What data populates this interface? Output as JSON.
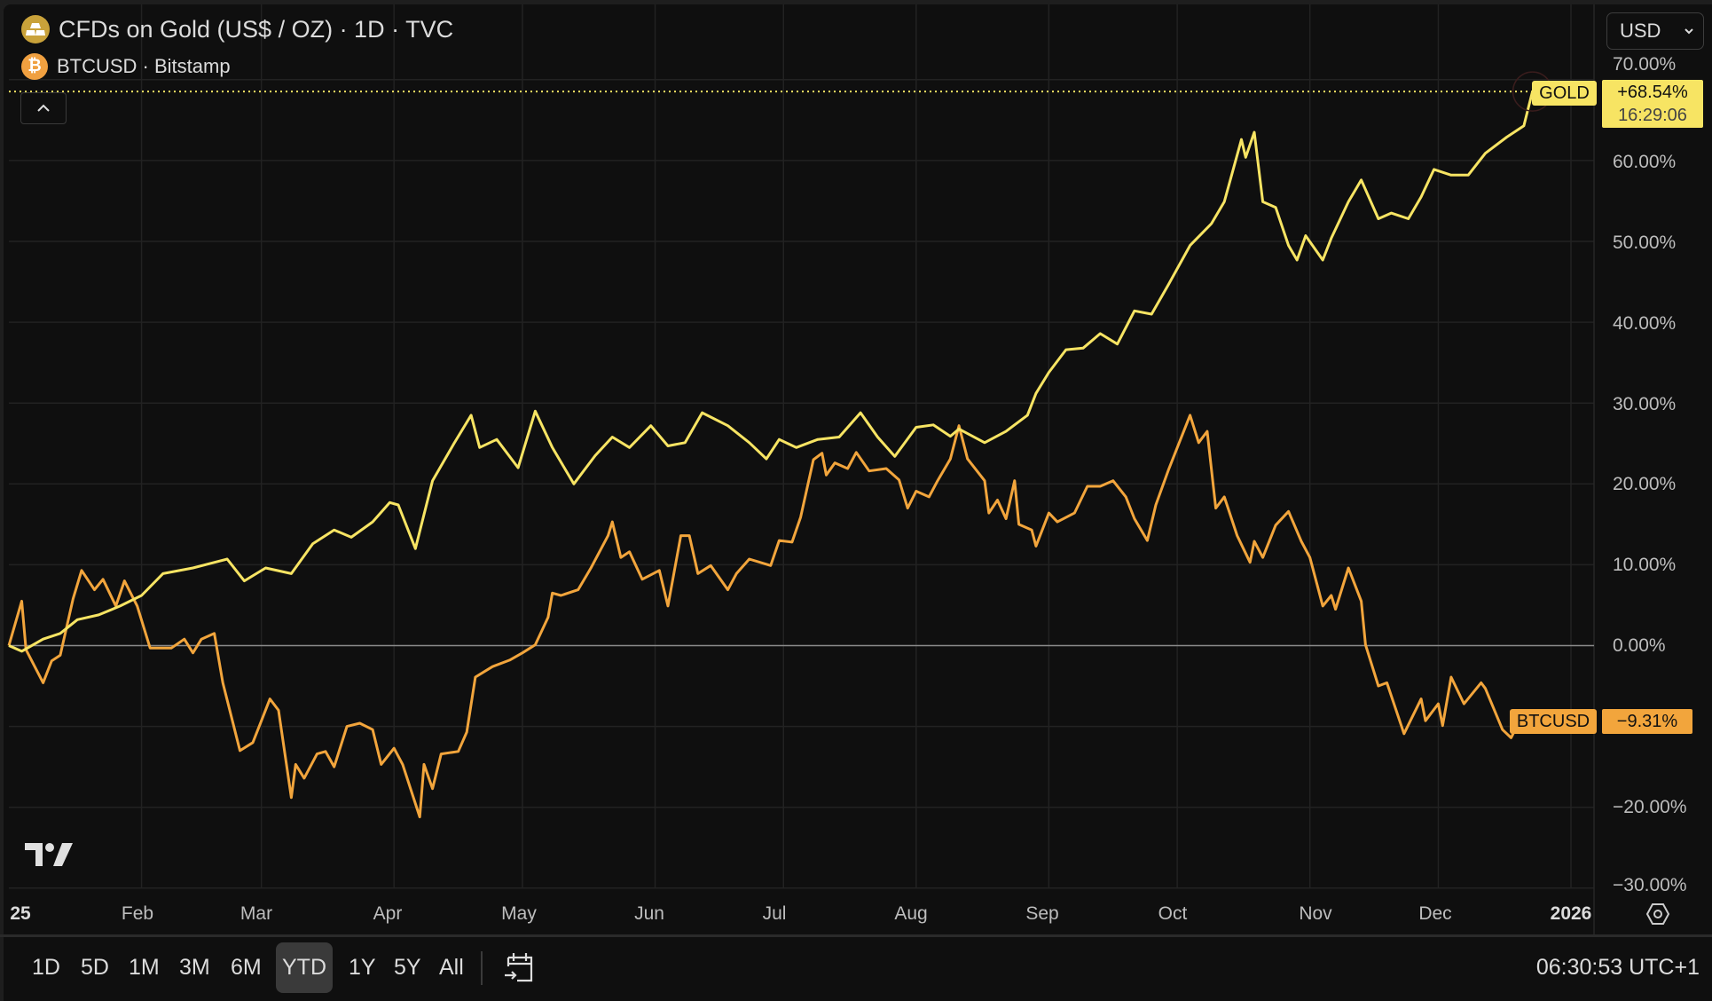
{
  "legend": {
    "gold": {
      "title": "CFDs on Gold (US$ / OZ) · 1D · TVC",
      "icon": "gold-bars-icon",
      "icon_color": "#c9a23a"
    },
    "btc": {
      "title": "BTCUSD · Bitstamp",
      "icon": "bitcoin-icon",
      "icon_glyph": "₿",
      "icon_color": "#f0a040"
    }
  },
  "currency_select": {
    "value": "USD"
  },
  "y_axis": {
    "labels": [
      "70.00%",
      "60.00%",
      "50.00%",
      "40.00%",
      "30.00%",
      "20.00%",
      "10.00%",
      "0.00%",
      "−20.00%",
      "−30.00%"
    ]
  },
  "x_axis": {
    "labels": [
      "25",
      "Feb",
      "Mar",
      "Apr",
      "May",
      "Jun",
      "Jul",
      "Aug",
      "Sep",
      "Oct",
      "Nov",
      "Dec",
      "2026"
    ]
  },
  "price_tags": {
    "gold": {
      "name": "GOLD",
      "value": "+68.54%",
      "countdown": "16:29:06"
    },
    "btc": {
      "name": "BTCUSD",
      "value": "−9.31%"
    }
  },
  "toolbar": {
    "ranges": [
      "1D",
      "5D",
      "1M",
      "3M",
      "6M",
      "YTD",
      "1Y",
      "5Y",
      "All"
    ],
    "active_range": "YTD",
    "clock": "06:30:53 UTC+1"
  },
  "chart_data": {
    "type": "line",
    "ylabel_unit": "%",
    "ylim": [
      -30,
      70
    ],
    "xlim": [
      "2025-01-01",
      "2026-01-08"
    ],
    "grid": true,
    "series": [
      {
        "name": "GOLD",
        "color": "#f7e463",
        "points": [
          [
            "2025-01-01",
            0
          ],
          [
            "2025-01-04",
            -0.7
          ],
          [
            "2025-01-09",
            0.8
          ],
          [
            "2025-01-13",
            1.5
          ],
          [
            "2025-01-17",
            3.2
          ],
          [
            "2025-01-22",
            3.8
          ],
          [
            "2025-01-27",
            4.9
          ],
          [
            "2025-02-01",
            6.2
          ],
          [
            "2025-02-06",
            8.9
          ],
          [
            "2025-02-13",
            9.6
          ],
          [
            "2025-02-21",
            10.7
          ],
          [
            "2025-02-25",
            8.0
          ],
          [
            "2025-03-02",
            9.6
          ],
          [
            "2025-03-08",
            8.9
          ],
          [
            "2025-03-13",
            12.6
          ],
          [
            "2025-03-18",
            14.3
          ],
          [
            "2025-03-22",
            13.4
          ],
          [
            "2025-03-27",
            15.3
          ],
          [
            "2025-03-31",
            17.7
          ],
          [
            "2025-04-02",
            17.4
          ],
          [
            "2025-04-06",
            12.0
          ],
          [
            "2025-04-10",
            20.4
          ],
          [
            "2025-04-15",
            25.0
          ],
          [
            "2025-04-19",
            28.5
          ],
          [
            "2025-04-21",
            24.5
          ],
          [
            "2025-04-25",
            25.5
          ],
          [
            "2025-04-30",
            22.0
          ],
          [
            "2025-05-04",
            29.0
          ],
          [
            "2025-05-08",
            24.5
          ],
          [
            "2025-05-13",
            20.0
          ],
          [
            "2025-05-18",
            23.5
          ],
          [
            "2025-05-22",
            25.8
          ],
          [
            "2025-05-26",
            24.5
          ],
          [
            "2025-05-31",
            27.2
          ],
          [
            "2025-06-04",
            24.7
          ],
          [
            "2025-06-08",
            25.1
          ],
          [
            "2025-06-12",
            28.8
          ],
          [
            "2025-06-18",
            27.2
          ],
          [
            "2025-06-23",
            25.1
          ],
          [
            "2025-06-27",
            23.1
          ],
          [
            "2025-06-30",
            25.5
          ],
          [
            "2025-07-04",
            24.5
          ],
          [
            "2025-07-09",
            25.5
          ],
          [
            "2025-07-14",
            25.8
          ],
          [
            "2025-07-19",
            28.8
          ],
          [
            "2025-07-23",
            25.8
          ],
          [
            "2025-07-27",
            23.4
          ],
          [
            "2025-08-01",
            27.0
          ],
          [
            "2025-08-05",
            27.3
          ],
          [
            "2025-08-09",
            25.9
          ],
          [
            "2025-08-11",
            26.8
          ],
          [
            "2025-08-17",
            25.1
          ],
          [
            "2025-08-22",
            26.5
          ],
          [
            "2025-08-27",
            28.5
          ],
          [
            "2025-08-29",
            31.2
          ],
          [
            "2025-09-01",
            33.8
          ],
          [
            "2025-09-05",
            36.6
          ],
          [
            "2025-09-09",
            36.8
          ],
          [
            "2025-09-13",
            38.6
          ],
          [
            "2025-09-17",
            37.3
          ],
          [
            "2025-09-21",
            41.4
          ],
          [
            "2025-09-25",
            41.0
          ],
          [
            "2025-09-29",
            44.7
          ],
          [
            "2025-10-04",
            49.5
          ],
          [
            "2025-10-09",
            52.2
          ],
          [
            "2025-10-12",
            54.9
          ],
          [
            "2025-10-16",
            62.6
          ],
          [
            "2025-10-17",
            60.4
          ],
          [
            "2025-10-19",
            63.5
          ],
          [
            "2025-10-21",
            54.9
          ],
          [
            "2025-10-24",
            54.2
          ],
          [
            "2025-10-27",
            49.5
          ],
          [
            "2025-10-29",
            47.7
          ],
          [
            "2025-10-31",
            50.7
          ],
          [
            "2025-11-04",
            47.7
          ],
          [
            "2025-11-06",
            50.4
          ],
          [
            "2025-11-10",
            54.9
          ],
          [
            "2025-11-13",
            57.6
          ],
          [
            "2025-11-17",
            52.8
          ],
          [
            "2025-11-20",
            53.5
          ],
          [
            "2025-11-24",
            52.8
          ],
          [
            "2025-11-27",
            55.5
          ],
          [
            "2025-11-30",
            58.9
          ],
          [
            "2025-12-04",
            58.2
          ],
          [
            "2025-12-08",
            58.2
          ],
          [
            "2025-12-12",
            60.9
          ],
          [
            "2025-12-17",
            62.9
          ],
          [
            "2025-12-21",
            64.3
          ],
          [
            "2025-12-23",
            68.54
          ]
        ]
      },
      {
        "name": "BTCUSD",
        "color": "#f2a53c",
        "points": [
          [
            "2025-01-01",
            0
          ],
          [
            "2025-01-04",
            5.5
          ],
          [
            "2025-01-05",
            -0.5
          ],
          [
            "2025-01-09",
            -4.6
          ],
          [
            "2025-01-11",
            -1.9
          ],
          [
            "2025-01-13",
            -1.2
          ],
          [
            "2025-01-16",
            5.8
          ],
          [
            "2025-01-18",
            9.3
          ],
          [
            "2025-01-21",
            6.9
          ],
          [
            "2025-01-23",
            8.2
          ],
          [
            "2025-01-26",
            4.9
          ],
          [
            "2025-01-28",
            8.0
          ],
          [
            "2025-01-31",
            4.9
          ],
          [
            "2025-02-03",
            -0.3
          ],
          [
            "2025-02-08",
            -0.3
          ],
          [
            "2025-02-11",
            0.8
          ],
          [
            "2025-02-13",
            -0.9
          ],
          [
            "2025-02-15",
            0.8
          ],
          [
            "2025-02-18",
            1.5
          ],
          [
            "2025-02-20",
            -4.6
          ],
          [
            "2025-02-24",
            -13.0
          ],
          [
            "2025-02-27",
            -12.0
          ],
          [
            "2025-03-01",
            -9.3
          ],
          [
            "2025-03-03",
            -6.6
          ],
          [
            "2025-03-05",
            -8.0
          ],
          [
            "2025-03-08",
            -18.8
          ],
          [
            "2025-03-09",
            -14.7
          ],
          [
            "2025-03-11",
            -16.4
          ],
          [
            "2025-03-14",
            -13.4
          ],
          [
            "2025-03-16",
            -13.1
          ],
          [
            "2025-03-18",
            -15.0
          ],
          [
            "2025-03-21",
            -10.0
          ],
          [
            "2025-03-24",
            -9.6
          ],
          [
            "2025-03-27",
            -10.4
          ],
          [
            "2025-03-29",
            -14.7
          ],
          [
            "2025-04-01",
            -12.7
          ],
          [
            "2025-04-03",
            -14.7
          ],
          [
            "2025-04-07",
            -21.2
          ],
          [
            "2025-04-08",
            -14.7
          ],
          [
            "2025-04-10",
            -17.7
          ],
          [
            "2025-04-12",
            -13.4
          ],
          [
            "2025-04-16",
            -13.1
          ],
          [
            "2025-04-18",
            -10.7
          ],
          [
            "2025-04-20",
            -3.9
          ],
          [
            "2025-04-24",
            -2.6
          ],
          [
            "2025-04-28",
            -1.8
          ],
          [
            "2025-05-01",
            -0.9
          ],
          [
            "2025-05-04",
            0.1
          ],
          [
            "2025-05-07",
            3.5
          ],
          [
            "2025-05-08",
            6.5
          ],
          [
            "2025-05-10",
            6.2
          ],
          [
            "2025-05-14",
            6.9
          ],
          [
            "2025-05-17",
            9.6
          ],
          [
            "2025-05-21",
            13.6
          ],
          [
            "2025-05-22",
            15.3
          ],
          [
            "2025-05-24",
            10.9
          ],
          [
            "2025-05-26",
            11.6
          ],
          [
            "2025-05-29",
            8.2
          ],
          [
            "2025-06-02",
            9.3
          ],
          [
            "2025-06-04",
            4.9
          ],
          [
            "2025-06-07",
            13.6
          ],
          [
            "2025-06-09",
            13.6
          ],
          [
            "2025-06-11",
            8.9
          ],
          [
            "2025-06-14",
            9.9
          ],
          [
            "2025-06-18",
            6.9
          ],
          [
            "2025-06-20",
            8.9
          ],
          [
            "2025-06-23",
            10.7
          ],
          [
            "2025-06-28",
            9.9
          ],
          [
            "2025-06-30",
            13.0
          ],
          [
            "2025-07-03",
            12.8
          ],
          [
            "2025-07-05",
            15.9
          ],
          [
            "2025-07-08",
            23.0
          ],
          [
            "2025-07-10",
            23.8
          ],
          [
            "2025-07-11",
            21.1
          ],
          [
            "2025-07-13",
            22.6
          ],
          [
            "2025-07-16",
            21.9
          ],
          [
            "2025-07-18",
            23.9
          ],
          [
            "2025-07-21",
            21.6
          ],
          [
            "2025-07-25",
            21.9
          ],
          [
            "2025-07-28",
            20.5
          ],
          [
            "2025-07-30",
            17.0
          ],
          [
            "2025-08-01",
            19.1
          ],
          [
            "2025-08-04",
            18.4
          ],
          [
            "2025-08-06",
            20.4
          ],
          [
            "2025-08-09",
            23.1
          ],
          [
            "2025-08-11",
            27.2
          ],
          [
            "2025-08-13",
            23.1
          ],
          [
            "2025-08-17",
            20.4
          ],
          [
            "2025-08-18",
            16.4
          ],
          [
            "2025-08-20",
            18.0
          ],
          [
            "2025-08-22",
            15.7
          ],
          [
            "2025-08-24",
            20.4
          ],
          [
            "2025-08-25",
            15.0
          ],
          [
            "2025-08-28",
            14.3
          ],
          [
            "2025-08-29",
            12.3
          ],
          [
            "2025-09-01",
            16.4
          ],
          [
            "2025-09-03",
            15.3
          ],
          [
            "2025-09-07",
            16.4
          ],
          [
            "2025-09-10",
            19.7
          ],
          [
            "2025-09-13",
            19.7
          ],
          [
            "2025-09-16",
            20.4
          ],
          [
            "2025-09-19",
            18.4
          ],
          [
            "2025-09-21",
            15.7
          ],
          [
            "2025-09-24",
            13.0
          ],
          [
            "2025-09-26",
            17.4
          ],
          [
            "2025-09-29",
            21.8
          ],
          [
            "2025-10-04",
            28.5
          ],
          [
            "2025-10-06",
            25.1
          ],
          [
            "2025-10-08",
            26.5
          ],
          [
            "2025-10-10",
            17.0
          ],
          [
            "2025-10-12",
            18.4
          ],
          [
            "2025-10-15",
            13.6
          ],
          [
            "2025-10-18",
            10.3
          ],
          [
            "2025-10-19",
            12.9
          ],
          [
            "2025-10-21",
            10.9
          ],
          [
            "2025-10-24",
            14.9
          ],
          [
            "2025-10-27",
            16.6
          ],
          [
            "2025-10-30",
            12.9
          ],
          [
            "2025-11-01",
            10.9
          ],
          [
            "2025-11-04",
            4.9
          ],
          [
            "2025-11-06",
            6.2
          ],
          [
            "2025-11-07",
            4.5
          ],
          [
            "2025-11-10",
            9.6
          ],
          [
            "2025-11-13",
            5.5
          ],
          [
            "2025-11-14",
            0.1
          ],
          [
            "2025-11-17",
            -5.0
          ],
          [
            "2025-11-19",
            -4.6
          ],
          [
            "2025-11-23",
            -10.9
          ],
          [
            "2025-11-27",
            -6.6
          ],
          [
            "2025-11-28",
            -9.3
          ],
          [
            "2025-12-01",
            -7.2
          ],
          [
            "2025-12-02",
            -9.9
          ],
          [
            "2025-12-04",
            -3.9
          ],
          [
            "2025-12-07",
            -7.2
          ],
          [
            "2025-12-11",
            -4.6
          ],
          [
            "2025-12-12",
            -5.3
          ],
          [
            "2025-12-16",
            -10.4
          ],
          [
            "2025-12-18",
            -11.4
          ],
          [
            "2025-12-20",
            -9.31
          ]
        ]
      }
    ]
  }
}
